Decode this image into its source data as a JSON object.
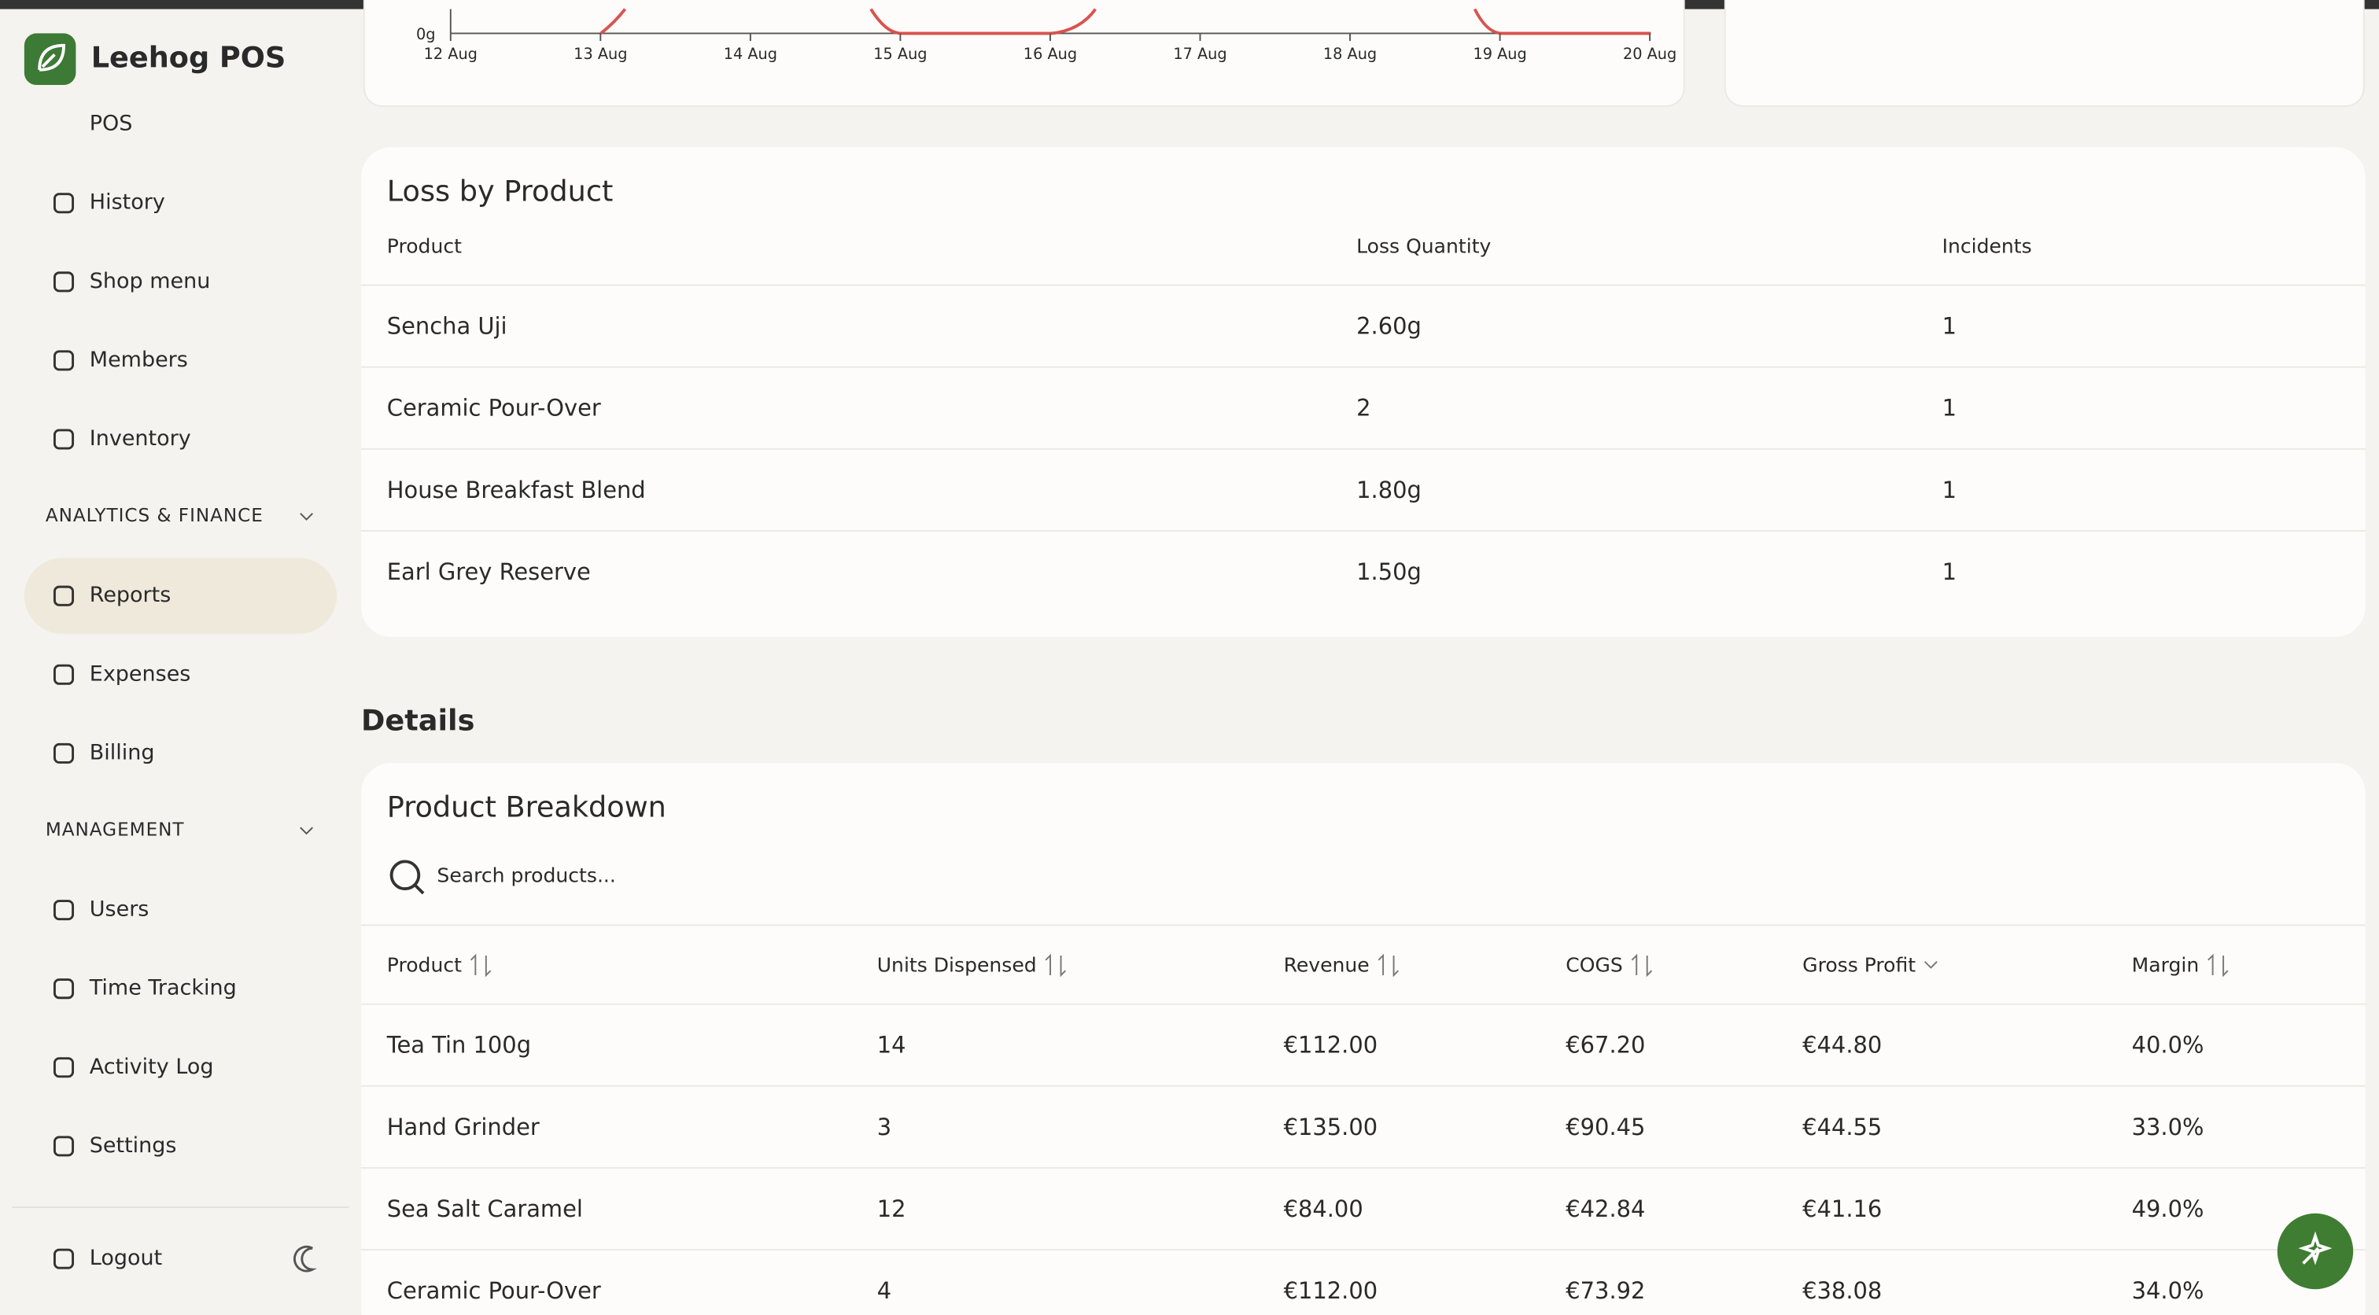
{
  "sidebar": {
    "brand": "Leehog POS",
    "top_items": [
      "POS",
      "History",
      "Shop menu",
      "Members",
      "Inventory"
    ],
    "sections": [
      {
        "title": "ANALYTICS & FINANCE",
        "items": [
          "Reports",
          "Expenses",
          "Billing"
        ]
      },
      {
        "title": "MANAGEMENT",
        "items": [
          "Users",
          "Time Tracking",
          "Activity Log",
          "Settings"
        ]
      }
    ],
    "active": "Reports",
    "logout": "Logout"
  },
  "loss_chart": {
    "y_labels": [
      "0g"
    ],
    "x_labels": [
      "12 Aug",
      "13 Aug",
      "14 Aug",
      "15 Aug",
      "16 Aug",
      "17 Aug",
      "18 Aug",
      "19 Aug",
      "20 Aug"
    ]
  },
  "loss_table": {
    "title": "Loss by Product",
    "columns": [
      "Product",
      "Loss Quantity",
      "Incidents"
    ],
    "rows": [
      [
        "Sencha Uji",
        "2.60g",
        "1"
      ],
      [
        "Ceramic Pour-Over",
        "2",
        "1"
      ],
      [
        "House Breakfast Blend",
        "1.80g",
        "1"
      ],
      [
        "Earl Grey Reserve",
        "1.50g",
        "1"
      ]
    ]
  },
  "details": {
    "heading": "Details",
    "title": "Product Breakdown",
    "search_placeholder": "Search products...",
    "columns": [
      "Product",
      "Units Dispensed",
      "Revenue",
      "COGS",
      "Gross Profit",
      "Margin"
    ],
    "rows": [
      [
        "Tea Tin 100g",
        "14",
        "€112.00",
        "€67.20",
        "€44.80",
        "40.0%"
      ],
      [
        "Hand Grinder",
        "3",
        "€135.00",
        "€90.45",
        "€44.55",
        "33.0%"
      ],
      [
        "Sea Salt Caramel",
        "12",
        "€84.00",
        "€42.84",
        "€41.16",
        "49.0%"
      ],
      [
        "Ceramic Pour-Over",
        "4",
        "€112.00",
        "€73.92",
        "€38.08",
        "34.0%"
      ]
    ]
  }
}
